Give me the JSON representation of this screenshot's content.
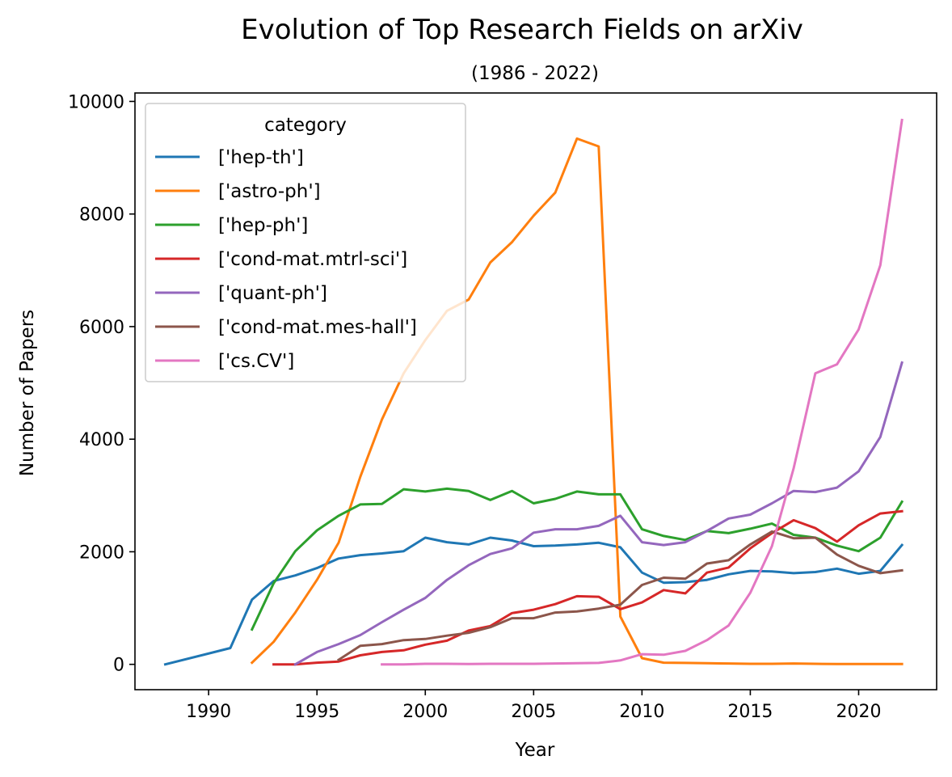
{
  "chart_data": {
    "type": "line",
    "title": "Evolution of Top Research Fields on arXiv",
    "subtitle": "(1986 - 2022)",
    "xlabel": "Year",
    "ylabel": "Number of Papers",
    "xlim": [
      1986.6,
      2023.6
    ],
    "ylim": [
      -450,
      10150
    ],
    "xticks": [
      1990,
      1995,
      2000,
      2005,
      2010,
      2015,
      2020
    ],
    "yticks": [
      0,
      2000,
      4000,
      6000,
      8000,
      10000
    ],
    "grid": false,
    "legend": {
      "title": "category",
      "placement": "top-left"
    },
    "series": [
      {
        "name": "['hep-th']",
        "color": "#1f77b4",
        "x": [
          1988,
          1991,
          1992,
          1993,
          1994,
          1995,
          1996,
          1997,
          1998,
          1999,
          2000,
          2001,
          2002,
          2003,
          2004,
          2005,
          2006,
          2007,
          2008,
          2009,
          2010,
          2011,
          2012,
          2013,
          2014,
          2015,
          2016,
          2017,
          2018,
          2019,
          2020,
          2021,
          2022
        ],
        "y": [
          0,
          290,
          1150,
          1480,
          1580,
          1710,
          1880,
          1940,
          1970,
          2010,
          2250,
          2170,
          2130,
          2250,
          2200,
          2100,
          2110,
          2130,
          2160,
          2080,
          1630,
          1450,
          1460,
          1500,
          1600,
          1660,
          1650,
          1620,
          1640,
          1700,
          1610,
          1660,
          2120
        ]
      },
      {
        "name": "['astro-ph']",
        "color": "#ff7f0e",
        "x": [
          1992,
          1993,
          1994,
          1995,
          1996,
          1997,
          1998,
          1999,
          2000,
          2001,
          2002,
          2003,
          2004,
          2005,
          2006,
          2007,
          2008,
          2009,
          2010,
          2011,
          2012,
          2013,
          2014,
          2015,
          2016,
          2017,
          2018,
          2019,
          2020,
          2021,
          2022
        ],
        "y": [
          30,
          400,
          920,
          1500,
          2160,
          3330,
          4350,
          5170,
          5760,
          6280,
          6480,
          7140,
          7500,
          7970,
          8380,
          9340,
          9200,
          850,
          110,
          30,
          25,
          20,
          15,
          10,
          10,
          15,
          10,
          5,
          5,
          5,
          5
        ]
      },
      {
        "name": "['hep-ph']",
        "color": "#2ca02c",
        "x": [
          1992,
          1993,
          1994,
          1995,
          1996,
          1997,
          1998,
          1999,
          2000,
          2001,
          2002,
          2003,
          2004,
          2005,
          2006,
          2007,
          2008,
          2009,
          2010,
          2011,
          2012,
          2013,
          2014,
          2015,
          2016,
          2017,
          2018,
          2019,
          2020,
          2021,
          2022
        ],
        "y": [
          620,
          1440,
          2010,
          2380,
          2640,
          2840,
          2850,
          3110,
          3070,
          3120,
          3080,
          2920,
          3080,
          2860,
          2940,
          3070,
          3020,
          3020,
          2400,
          2280,
          2210,
          2370,
          2330,
          2410,
          2500,
          2300,
          2250,
          2110,
          2010,
          2250,
          2890
        ]
      },
      {
        "name": "['cond-mat.mtrl-sci']",
        "color": "#d62728",
        "x": [
          1993,
          1994,
          1995,
          1996,
          1997,
          1998,
          1999,
          2000,
          2001,
          2002,
          2003,
          2004,
          2005,
          2006,
          2007,
          2008,
          2009,
          2010,
          2011,
          2012,
          2013,
          2014,
          2015,
          2016,
          2017,
          2018,
          2019,
          2020,
          2021,
          2022
        ],
        "y": [
          0,
          0,
          30,
          50,
          160,
          220,
          250,
          350,
          420,
          600,
          680,
          910,
          970,
          1070,
          1210,
          1200,
          980,
          1100,
          1320,
          1260,
          1630,
          1720,
          2060,
          2330,
          2560,
          2420,
          2180,
          2470,
          2680,
          2720
        ]
      },
      {
        "name": "['quant-ph']",
        "color": "#9467bd",
        "x": [
          1994,
          1995,
          1996,
          1997,
          1998,
          1999,
          2000,
          2001,
          2002,
          2003,
          2004,
          2005,
          2006,
          2007,
          2008,
          2009,
          2010,
          2011,
          2012,
          2013,
          2014,
          2015,
          2016,
          2017,
          2018,
          2019,
          2020,
          2021,
          2022
        ],
        "y": [
          0,
          220,
          360,
          520,
          750,
          970,
          1180,
          1500,
          1760,
          1960,
          2060,
          2340,
          2400,
          2400,
          2460,
          2640,
          2170,
          2120,
          2170,
          2370,
          2590,
          2660,
          2860,
          3080,
          3060,
          3140,
          3430,
          4040,
          5360
        ]
      },
      {
        "name": "['cond-mat.mes-hall']",
        "color": "#8c564b",
        "x": [
          1996,
          1997,
          1998,
          1999,
          2000,
          2001,
          2002,
          2003,
          2004,
          2005,
          2006,
          2007,
          2008,
          2009,
          2010,
          2011,
          2012,
          2013,
          2014,
          2015,
          2016,
          2017,
          2018,
          2019,
          2020,
          2021,
          2022
        ],
        "y": [
          80,
          330,
          360,
          430,
          450,
          510,
          560,
          660,
          820,
          820,
          920,
          940,
          990,
          1060,
          1410,
          1540,
          1520,
          1790,
          1850,
          2130,
          2360,
          2240,
          2250,
          1950,
          1750,
          1620,
          1670
        ]
      },
      {
        "name": "['cs.CV']",
        "color": "#e377c2",
        "x": [
          1998,
          1999,
          2000,
          2001,
          2002,
          2003,
          2004,
          2005,
          2006,
          2007,
          2008,
          2009,
          2010,
          2011,
          2012,
          2013,
          2014,
          2015,
          2016,
          2017,
          2018,
          2019,
          2020,
          2021,
          2022
        ],
        "y": [
          0,
          0,
          10,
          10,
          5,
          10,
          10,
          10,
          15,
          20,
          25,
          70,
          180,
          170,
          240,
          430,
          690,
          1270,
          2100,
          3480,
          5170,
          5330,
          5950,
          7090,
          9670
        ]
      }
    ]
  }
}
